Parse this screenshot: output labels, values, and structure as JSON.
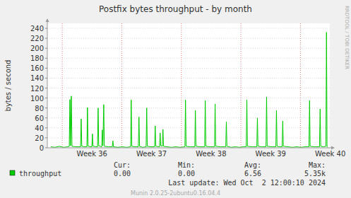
{
  "chart_data": {
    "type": "line",
    "title": "Postfix bytes throughput - by month",
    "y_label": "bytes / second",
    "x": [
      0.4,
      0.9,
      1.4,
      1.9,
      2.4,
      2.58,
      2.65,
      2.73,
      2.82,
      2.9,
      3.4,
      3.91,
      3.98,
      4.05,
      4.4,
      4.65,
      4.72,
      4.79,
      5.23,
      5.3,
      5.37,
      5.9,
      5.97,
      6.04,
      6.39,
      6.46,
      6.53,
      6.63,
      6.7,
      7.2,
      7.64,
      7.71,
      7.78,
      8.3,
      8.8,
      9.3,
      9.79,
      9.86,
      9.93,
      10.3,
      10.7,
      10.77,
      10.84,
      11.2,
      11.61,
      11.68,
      11.75,
      12.2,
      12.61,
      12.68,
      12.75,
      13.19,
      13.26,
      13.33,
      13.52,
      13.59,
      13.66,
      14.1,
      14.6,
      15.1,
      15.6,
      16.17,
      16.24,
      16.31,
      16.8,
      17.33,
      17.4,
      17.47,
      18.0,
      18.49,
      18.56,
      18.63,
      19.1,
      19.65,
      19.72,
      19.79,
      20.4,
      20.97,
      21.04,
      21.11,
      21.6,
      22.1,
      22.6,
      23.0,
      23.38,
      23.45,
      23.52,
      24.1,
      24.62,
      24.69,
      24.76,
      25.2,
      25.7,
      25.77,
      25.84,
      26.4,
      26.86,
      26.93,
      27.0,
      27.3,
      27.6,
      27.67,
      27.74,
      28.3,
      28.8,
      29.3,
      29.8,
      30.3,
      30.75,
      30.82,
      30.89,
      31.4,
      31.99,
      32.06,
      32.13,
      32.5,
      32.74,
      32.81,
      32.88,
      33.0
    ],
    "series": [
      {
        "name": "throughput",
        "color": "#00cc00",
        "values": [
          2,
          1,
          3,
          1,
          2,
          3,
          97,
          4,
          104,
          3,
          2,
          2,
          58,
          3,
          2,
          2,
          81,
          3,
          2,
          28,
          3,
          2,
          80,
          4,
          2,
          36,
          4,
          87,
          3,
          2,
          2,
          14,
          2,
          1,
          2,
          1,
          2,
          96,
          3,
          2,
          2,
          62,
          3,
          1,
          2,
          80,
          3,
          2,
          2,
          44,
          3,
          2,
          30,
          4,
          3,
          37,
          3,
          2,
          1,
          2,
          1,
          2,
          96,
          3,
          2,
          2,
          75,
          3,
          2,
          2,
          95,
          3,
          2,
          2,
          88,
          3,
          2,
          2,
          52,
          3,
          1,
          2,
          1,
          2,
          2,
          96,
          3,
          2,
          2,
          60,
          3,
          2,
          2,
          102,
          3,
          2,
          2,
          75,
          3,
          2,
          2,
          54,
          3,
          2,
          1,
          2,
          1,
          2,
          2,
          95,
          3,
          2,
          2,
          78,
          3,
          2,
          3,
          232,
          2,
          0
        ]
      }
    ],
    "xlim": [
      0,
      33.2
    ],
    "xticks": [
      {
        "value": 1.75,
        "label": "Week 36"
      },
      {
        "value": 8.75,
        "label": "Week 37"
      },
      {
        "value": 15.75,
        "label": "Week 38"
      },
      {
        "value": 22.75,
        "label": "Week 39"
      },
      {
        "value": 29.75,
        "label": "Week 40"
      }
    ],
    "ylim": [
      0,
      250
    ],
    "yticks": [
      0,
      20,
      40,
      60,
      80,
      100,
      120,
      140,
      160,
      180,
      200,
      220,
      240
    ],
    "grid": true,
    "legend": "bottom-left",
    "stats": [
      {
        "name": "Cur:",
        "value": "0.00"
      },
      {
        "name": "Min:",
        "value": "0.00"
      },
      {
        "name": "Avg:",
        "value": "6.56"
      },
      {
        "name": "Max:",
        "value": "5.35k"
      }
    ],
    "last_update": "Last update: Wed Oct  2 12:00:10 2024",
    "footer": "Munin 2.0.25-2ubuntu0.16.04.4",
    "watermark": "RRDTOOL / TOBI OETIKER"
  }
}
